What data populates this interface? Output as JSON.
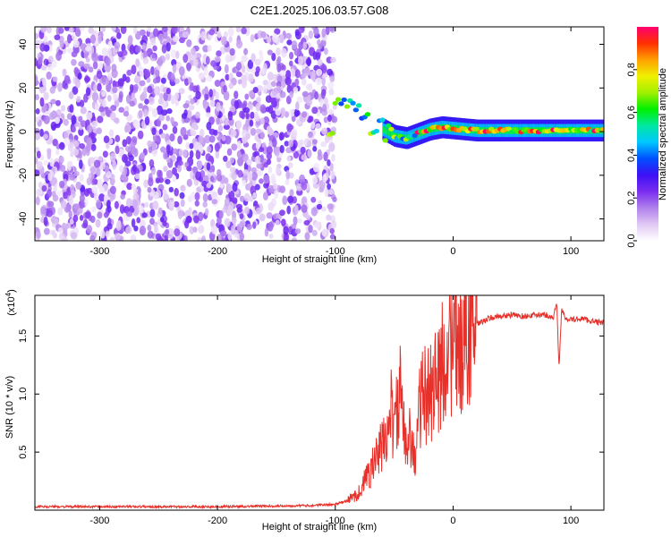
{
  "chart_data": [
    {
      "type": "heatmap",
      "title": "C2E1.2025.106.03.57.G08",
      "xlabel": "Height of straight line (km)",
      "ylabel": "Frequency (Hz)",
      "xlim": [
        -355,
        128
      ],
      "ylim": [
        -50,
        48
      ],
      "x_ticks": [
        -300,
        -200,
        -100,
        0,
        100
      ],
      "y_ticks": [
        -40,
        -20,
        0,
        20,
        40
      ],
      "colorbar": {
        "label": "Normalized spectral amplitude",
        "range": [
          0.0,
          1.0
        ],
        "ticks": [
          0.0,
          0.2,
          0.4,
          0.6,
          0.8
        ],
        "tick_labels": [
          "0.0",
          "0.2",
          "0.4",
          "0.6",
          "0.8"
        ],
        "colors": [
          "#ffffff",
          "#e0c8f4",
          "#b080ec",
          "#7a2df0",
          "#3d10f5",
          "#0050ff",
          "#00c8ff",
          "#00e8a0",
          "#00f000",
          "#a0f000",
          "#f0f000",
          "#ffa000",
          "#ff3000",
          "#ff0070"
        ]
      },
      "features": {
        "noise_region_x": [
          -355,
          -100
        ],
        "signal_track": [
          {
            "x": -100,
            "y": 17
          },
          {
            "x": -90,
            "y": 12
          },
          {
            "x": -80,
            "y": 8
          },
          {
            "x": -70,
            "y": 4
          },
          {
            "x": -60,
            "y": 1
          },
          {
            "x": -50,
            "y": -2
          },
          {
            "x": -40,
            "y": -3
          },
          {
            "x": -30,
            "y": -1
          },
          {
            "x": -20,
            "y": 1
          },
          {
            "x": -10,
            "y": 2
          },
          {
            "x": 0,
            "y": 1.5
          },
          {
            "x": 20,
            "y": 0.5
          },
          {
            "x": 60,
            "y": 0.5
          },
          {
            "x": 100,
            "y": 0.5
          },
          {
            "x": 128,
            "y": 0.5
          }
        ]
      }
    },
    {
      "type": "line",
      "xlabel": "Height of straight line (km)",
      "ylabel": "SNR (10 * v/v)",
      "y_scale_label": "(x10",
      "y_scale_exp": "4",
      "y_scale_close": ")",
      "xlim": [
        -355,
        128
      ],
      "ylim": [
        0,
        1.85
      ],
      "x_ticks": [
        -300,
        -200,
        -100,
        0,
        100
      ],
      "y_ticks": [
        0.5,
        1.0,
        1.5
      ],
      "y_tick_labels": [
        "0.5",
        "1.0",
        "1.5"
      ],
      "series": [
        {
          "color": "#e8302a",
          "x": [
            -355,
            -300,
            -200,
            -120,
            -100,
            -90,
            -80,
            -75,
            -70,
            -65,
            -60,
            -55,
            -52,
            -50,
            -48,
            -45,
            -42,
            -40,
            -38,
            -35,
            -32,
            -30,
            -28,
            -25,
            -22,
            -20,
            -18,
            -15,
            -12,
            -10,
            -8,
            -5,
            -2,
            0,
            3,
            6,
            10,
            15,
            20,
            25,
            30,
            40,
            50,
            60,
            70,
            80,
            85,
            88,
            90,
            92,
            95,
            100,
            110,
            120,
            128
          ],
          "y": [
            0.03,
            0.03,
            0.03,
            0.04,
            0.05,
            0.08,
            0.15,
            0.25,
            0.35,
            0.45,
            0.55,
            0.7,
            0.9,
            0.6,
            0.85,
            1.0,
            0.7,
            0.5,
            0.8,
            0.6,
            0.35,
            0.8,
            0.9,
            1.0,
            0.95,
            1.15,
            1.0,
            1.2,
            1.05,
            1.25,
            1.35,
            1.3,
            1.45,
            1.3,
            1.5,
            1.4,
            1.55,
            1.6,
            1.6,
            1.62,
            1.65,
            1.67,
            1.68,
            1.67,
            1.68,
            1.68,
            1.65,
            1.8,
            1.2,
            1.72,
            1.66,
            1.64,
            1.65,
            1.62,
            1.62
          ]
        }
      ]
    }
  ]
}
